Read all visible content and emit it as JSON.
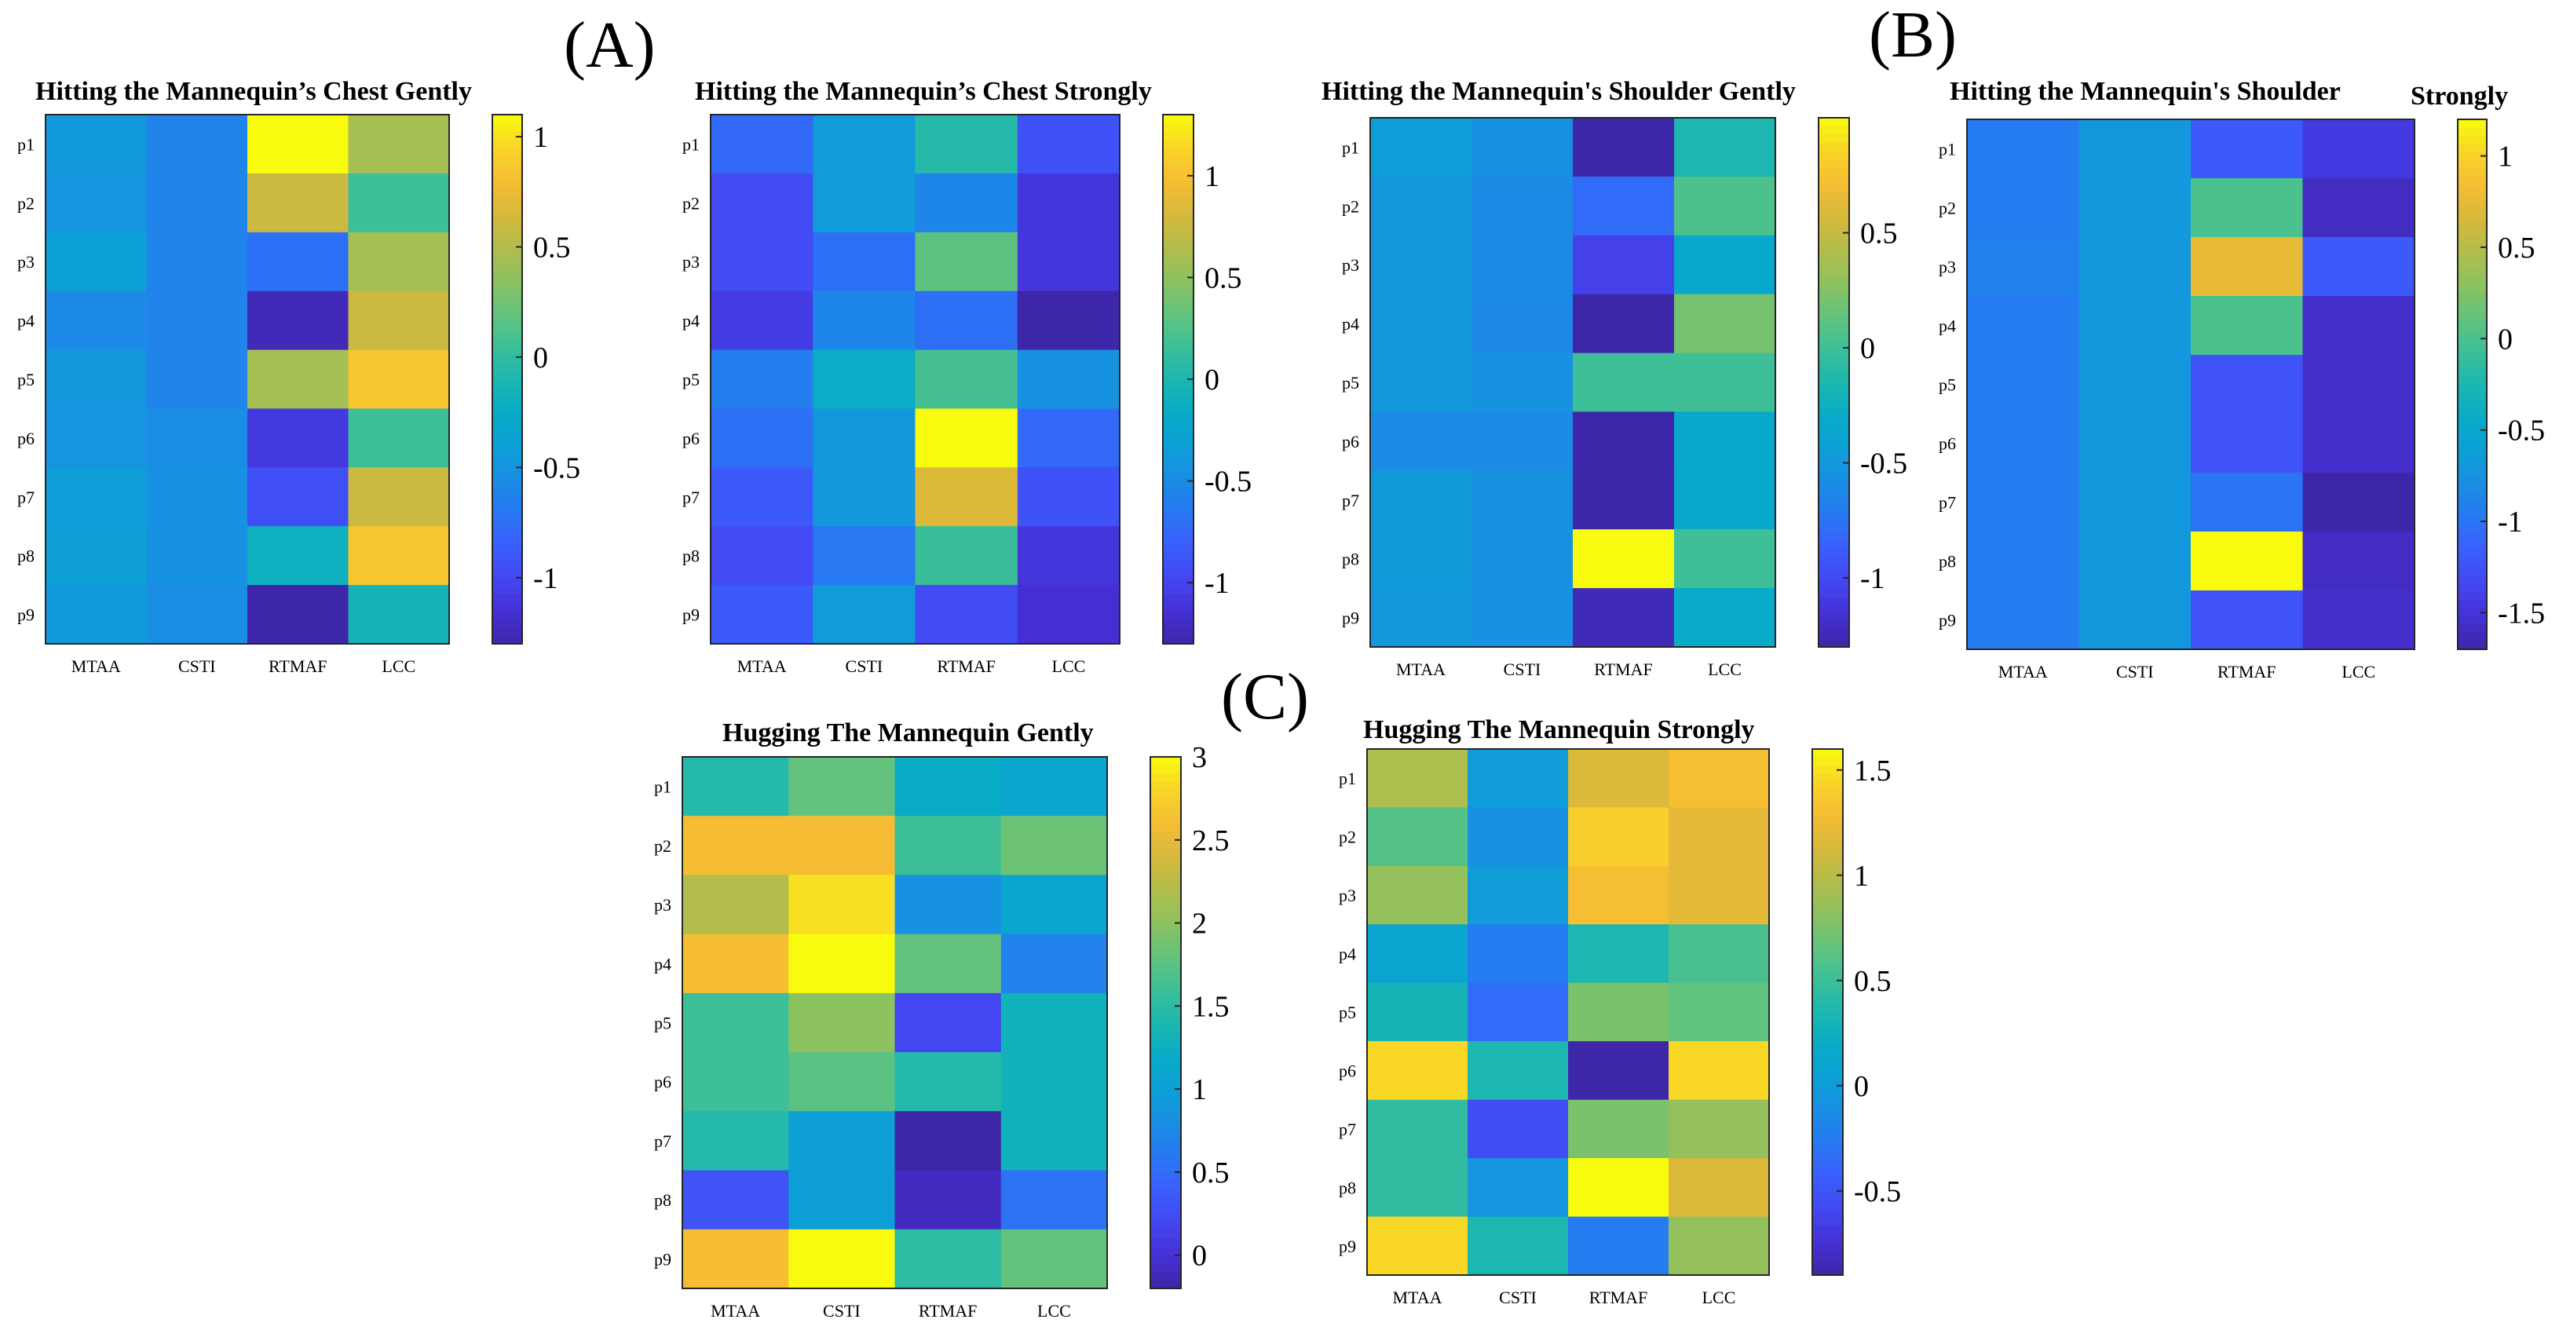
{
  "panel_labels": [
    "(A)",
    "(B)",
    "(C)"
  ],
  "colormap": [
    "#3e26a8",
    "#4531d5",
    "#4347f2",
    "#3a5ffc",
    "#2778f2",
    "#1a8ee4",
    "#0d9fd6",
    "#08acc7",
    "#1cb7b0",
    "#3dbf98",
    "#63c37c",
    "#8cc25f",
    "#b3bd4b",
    "#d6b83c",
    "#f6bd34",
    "#f8d527",
    "#f9fb0e"
  ],
  "chart_data": [
    {
      "id": "chest-gently",
      "type": "heatmap",
      "title": "Hitting the Mannequin’s Chest Gently",
      "x_labels": [
        "MTAA",
        "CSTI",
        "RTMAF",
        "LCC"
      ],
      "y_labels": [
        "p1",
        "p2",
        "p3",
        "p4",
        "p5",
        "p6",
        "p7",
        "p8",
        "p9"
      ],
      "clim": [
        -1.3,
        1.1
      ],
      "colorbar_ticks": [
        1,
        0.5,
        0,
        -0.5,
        -1
      ],
      "colorbar_labels": [
        "1",
        "0.5",
        "0",
        "-0.5",
        "-1"
      ],
      "values": [
        [
          -0.45,
          -0.62,
          1.1,
          0.45
        ],
        [
          -0.5,
          -0.62,
          0.6,
          0.05
        ],
        [
          -0.38,
          -0.62,
          -0.75,
          0.45
        ],
        [
          -0.58,
          -0.62,
          -1.25,
          0.6
        ],
        [
          -0.48,
          -0.62,
          0.45,
          0.85
        ],
        [
          -0.5,
          -0.55,
          -1.1,
          0.05
        ],
        [
          -0.42,
          -0.52,
          -0.95,
          0.6
        ],
        [
          -0.4,
          -0.52,
          -0.2,
          0.85
        ],
        [
          -0.45,
          -0.55,
          -1.3,
          -0.15
        ]
      ]
    },
    {
      "id": "chest-strongly",
      "type": "heatmap",
      "title": "Hitting the Mannequin’s Chest Strongly",
      "x_labels": [
        "MTAA",
        "CSTI",
        "RTMAF",
        "LCC"
      ],
      "y_labels": [
        "p1",
        "p2",
        "p3",
        "p4",
        "p5",
        "p6",
        "p7",
        "p8",
        "p9"
      ],
      "clim": [
        -1.3,
        1.3
      ],
      "colorbar_ticks": [
        1,
        0.5,
        0,
        -0.5,
        -1
      ],
      "colorbar_labels": [
        "1",
        "0.5",
        "0",
        "-0.5",
        "-1"
      ],
      "values": [
        [
          -0.75,
          -0.35,
          0.05,
          -0.9
        ],
        [
          -0.95,
          -0.35,
          -0.55,
          -1.1
        ],
        [
          -0.95,
          -0.7,
          0.3,
          -1.1
        ],
        [
          -1.05,
          -0.55,
          -0.7,
          -1.3
        ],
        [
          -0.6,
          -0.15,
          0.2,
          -0.45
        ],
        [
          -0.7,
          -0.4,
          1.3,
          -0.75
        ],
        [
          -0.85,
          -0.4,
          0.85,
          -0.9
        ],
        [
          -0.95,
          -0.65,
          0.15,
          -1.1
        ],
        [
          -0.85,
          -0.35,
          -0.95,
          -1.15
        ]
      ]
    },
    {
      "id": "shoulder-gently",
      "type": "heatmap",
      "title": "Hitting the Mannequin's Shoulder Gently",
      "x_labels": [
        "MTAA",
        "CSTI",
        "RTMAF",
        "LCC"
      ],
      "y_labels": [
        "p1",
        "p2",
        "p3",
        "p4",
        "p5",
        "p6",
        "p7",
        "p8",
        "p9"
      ],
      "clim": [
        -1.3,
        1.0
      ],
      "colorbar_ticks": [
        0.5,
        0,
        -0.5,
        -1
      ],
      "colorbar_labels": [
        "0.5",
        "0",
        "-0.5",
        "-1"
      ],
      "values": [
        [
          -0.45,
          -0.55,
          -1.3,
          -0.15
        ],
        [
          -0.5,
          -0.6,
          -0.8,
          0.05
        ],
        [
          -0.5,
          -0.6,
          -1.05,
          -0.35
        ],
        [
          -0.5,
          -0.62,
          -1.3,
          0.2
        ],
        [
          -0.5,
          -0.55,
          0.0,
          0.0
        ],
        [
          -0.6,
          -0.6,
          -1.3,
          -0.35
        ],
        [
          -0.48,
          -0.55,
          -1.3,
          -0.35
        ],
        [
          -0.48,
          -0.55,
          1.0,
          0.0
        ],
        [
          -0.5,
          -0.55,
          -1.25,
          -0.3
        ]
      ]
    },
    {
      "id": "shoulder-strongly",
      "type": "heatmap",
      "title": "Hitting the Mannequin's Shoulder",
      "title_suffix": "Strongly",
      "x_labels": [
        "MTAA",
        "CSTI",
        "RTMAF",
        "LCC"
      ],
      "y_labels": [
        "p1",
        "p2",
        "p3",
        "p4",
        "p5",
        "p6",
        "p7",
        "p8",
        "p9"
      ],
      "clim": [
        -1.7,
        1.2
      ],
      "colorbar_ticks": [
        1,
        0.5,
        0,
        -0.5,
        -1,
        -1.5
      ],
      "colorbar_labels": [
        "1",
        "0.5",
        "0",
        "-0.5",
        "-1",
        "-1.5"
      ],
      "values": [
        [
          -0.95,
          -0.7,
          -1.2,
          -1.45
        ],
        [
          -0.95,
          -0.7,
          0.0,
          -1.6
        ],
        [
          -0.9,
          -0.7,
          0.75,
          -1.2
        ],
        [
          -0.95,
          -0.7,
          0.0,
          -1.55
        ],
        [
          -0.95,
          -0.7,
          -1.25,
          -1.55
        ],
        [
          -0.95,
          -0.7,
          -1.25,
          -1.55
        ],
        [
          -0.95,
          -0.7,
          -1.0,
          -1.7
        ],
        [
          -0.95,
          -0.7,
          1.2,
          -1.6
        ],
        [
          -0.95,
          -0.7,
          -1.25,
          -1.55
        ]
      ]
    },
    {
      "id": "hug-gently",
      "type": "heatmap",
      "title": "Hugging The Mannequin Gently",
      "x_labels": [
        "MTAA",
        "CSTI",
        "RTMAF",
        "LCC"
      ],
      "y_labels": [
        "p1",
        "p2",
        "p3",
        "p4",
        "p5",
        "p6",
        "p7",
        "p8",
        "p9"
      ],
      "clim": [
        -0.2,
        3.0
      ],
      "colorbar_ticks": [
        3,
        2.5,
        2,
        1.5,
        1,
        0.5,
        0
      ],
      "colorbar_labels": [
        "3",
        "2.5",
        "2",
        "1.5",
        "1",
        "0.5",
        "0"
      ],
      "values": [
        [
          1.45,
          1.8,
          1.2,
          1.1
        ],
        [
          2.6,
          2.6,
          1.6,
          1.85
        ],
        [
          2.2,
          2.85,
          0.85,
          1.1
        ],
        [
          2.6,
          3.0,
          1.8,
          0.7
        ],
        [
          1.6,
          2.0,
          0.2,
          1.3
        ],
        [
          1.6,
          1.75,
          1.45,
          1.3
        ],
        [
          1.45,
          1.0,
          -0.2,
          1.3
        ],
        [
          0.3,
          1.0,
          -0.1,
          0.55
        ],
        [
          2.6,
          3.0,
          1.5,
          1.8
        ]
      ]
    },
    {
      "id": "hug-strongly",
      "type": "heatmap",
      "title": "Hugging The Mannequin Strongly",
      "x_labels": [
        "MTAA",
        "CSTI",
        "RTMAF",
        "LCC"
      ],
      "y_labels": [
        "p1",
        "p2",
        "p3",
        "p4",
        "p5",
        "p6",
        "p7",
        "p8",
        "p9"
      ],
      "clim": [
        -0.9,
        1.6
      ],
      "colorbar_ticks": [
        1.5,
        1,
        0.5,
        0,
        -0.5
      ],
      "colorbar_labels": [
        "1.5",
        "1",
        "0.5",
        "0",
        "-0.5"
      ],
      "values": [
        [
          0.95,
          0.0,
          1.15,
          1.3
        ],
        [
          0.6,
          -0.1,
          1.4,
          1.2
        ],
        [
          0.85,
          0.0,
          1.3,
          1.2
        ],
        [
          0.1,
          -0.25,
          0.35,
          0.55
        ],
        [
          0.3,
          -0.35,
          0.75,
          0.65
        ],
        [
          1.45,
          0.35,
          -0.9,
          1.45
        ],
        [
          0.45,
          -0.55,
          0.75,
          0.85
        ],
        [
          0.45,
          -0.05,
          1.6,
          1.15
        ],
        [
          1.45,
          0.35,
          -0.25,
          0.85
        ]
      ]
    }
  ]
}
